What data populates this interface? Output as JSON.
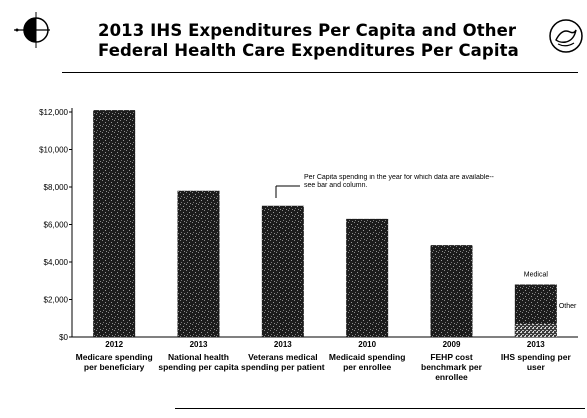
{
  "title": {
    "line1": "2013 IHS Expenditures Per Capita and Other",
    "line2": "Federal Health Care Expenditures Per Capita"
  },
  "icons": {
    "left_logo": "ihs-logo-icon",
    "right_logo": "hhs-eagle-icon"
  },
  "colors": {
    "bar": "#1a1a1a",
    "background": "#ffffff"
  },
  "chart_data": {
    "type": "bar",
    "categories": [
      "Medicare spending per beneficiary",
      "National health spending per capita",
      "Veterans medical spending per patient",
      "Medicaid spending per enrollee",
      "FEHP cost benchmark per enrollee",
      "IHS spending per user"
    ],
    "years": [
      "2012",
      "2013",
      "2013",
      "2010",
      "2009",
      "2013"
    ],
    "values": [
      12100,
      7800,
      7000,
      6300,
      4900,
      2800
    ],
    "stack_segments": [
      {
        "label": "Medical",
        "value": 2100
      },
      {
        "label": "Other",
        "value": 700
      }
    ],
    "ylim": [
      0,
      12000
    ],
    "yticks": [
      "$0",
      "$2,000",
      "$4,000",
      "$6,000",
      "$8,000",
      "$10,000",
      "$12,000"
    ],
    "annotation": "Per Capita spending in the year for which data are available--see bar and column.",
    "grid": false
  }
}
